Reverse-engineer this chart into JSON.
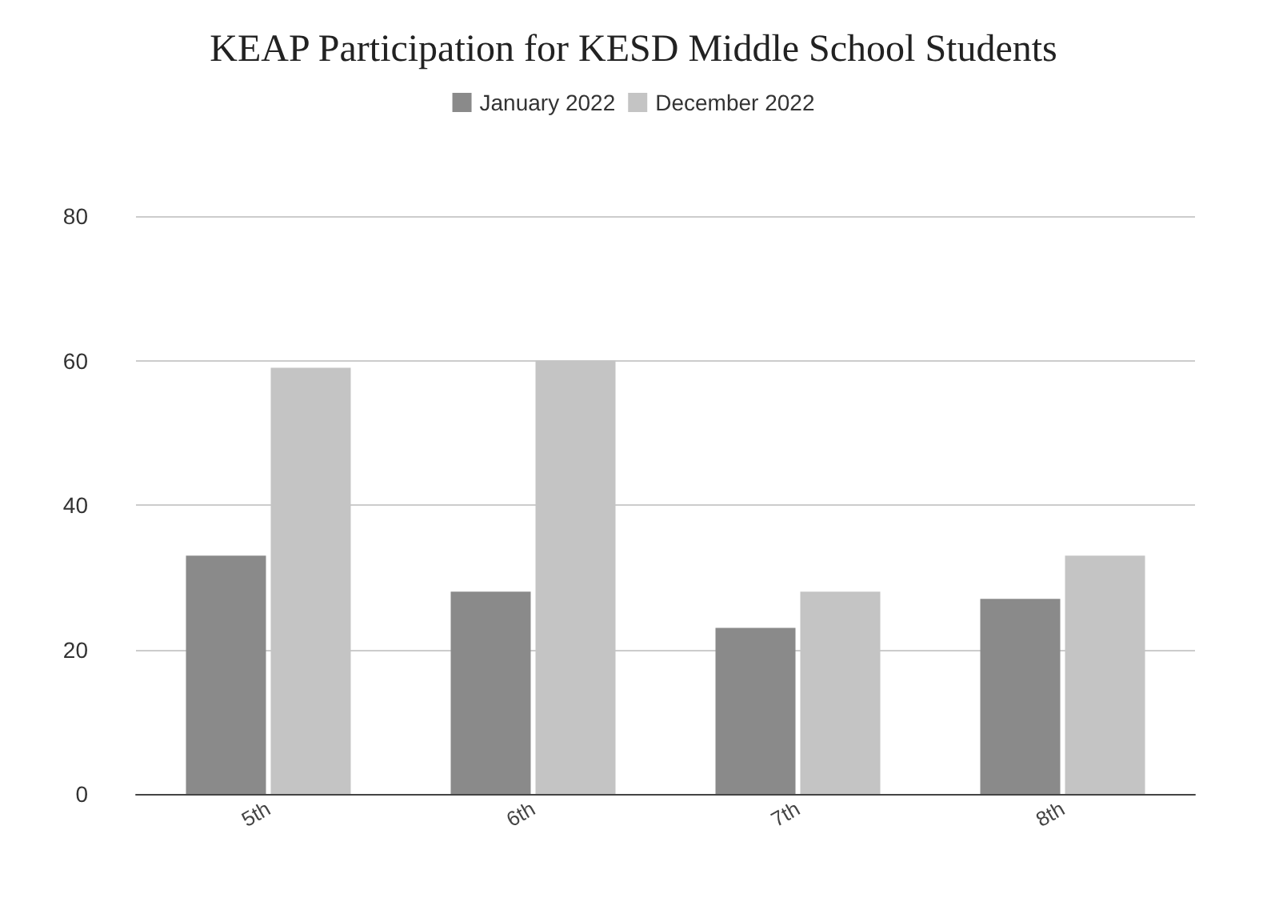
{
  "chart_data": {
    "type": "bar",
    "title": "KEAP Participation for KESD Middle School Students",
    "categories": [
      "5th",
      "6th",
      "7th",
      "8th"
    ],
    "series": [
      {
        "name": "January 2022",
        "color": "#8a8a8a",
        "values": [
          33,
          28,
          23,
          27
        ]
      },
      {
        "name": "December 2022",
        "color": "#c4c4c4",
        "values": [
          59,
          60,
          28,
          33
        ]
      }
    ],
    "ylim": [
      0,
      80
    ],
    "yticks": [
      0,
      20,
      40,
      60,
      80
    ],
    "grid": "y",
    "legend": "top"
  }
}
